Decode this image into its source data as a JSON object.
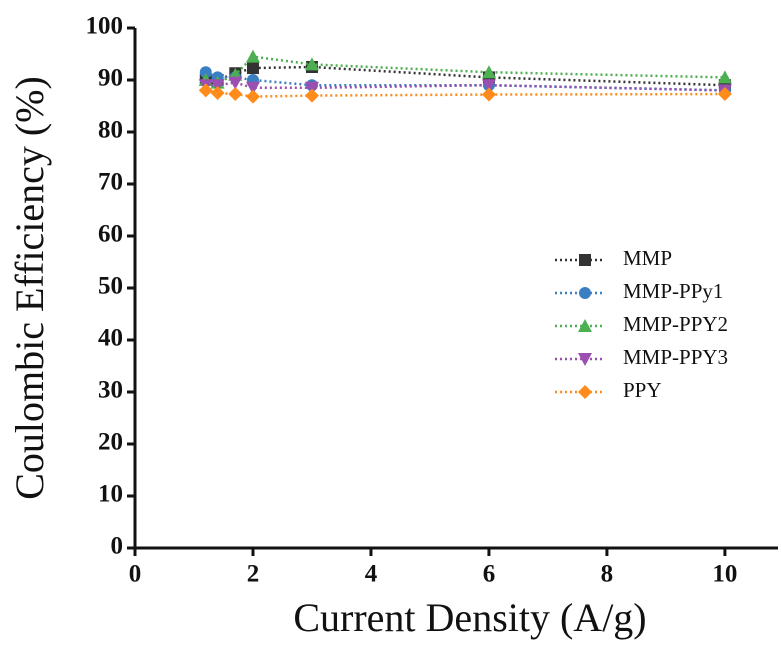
{
  "chart_data": {
    "type": "line",
    "x_label": "Current Density (A/g)",
    "y_label": "Coulombic Efficiency (%)",
    "x": [
      1.2,
      1.4,
      1.7,
      2,
      3,
      6,
      10
    ],
    "series": [
      {
        "name": "MMP",
        "color": "#333333",
        "marker": "square",
        "values": [
          90,
          90,
          91.3,
          92.3,
          92.5,
          90.5,
          89
        ]
      },
      {
        "name": "MMP-PPy1",
        "color": "#3a7fc1",
        "marker": "circle",
        "values": [
          91.5,
          90.5,
          90.5,
          90,
          89,
          89,
          88
        ]
      },
      {
        "name": "MMP-PPY2",
        "color": "#4caf50",
        "marker": "triangle",
        "values": [
          90,
          89.5,
          91,
          94.5,
          93,
          91.5,
          90.5
        ]
      },
      {
        "name": "MMP-PPY3",
        "color": "#9b4fb0",
        "marker": "triangle-down",
        "values": [
          89,
          89,
          89.5,
          88.5,
          88.5,
          89,
          88
        ]
      },
      {
        "name": "PPY",
        "color": "#ff8c1a",
        "marker": "diamond",
        "values": [
          88,
          87.5,
          87.3,
          86.8,
          87,
          87.2,
          87.3
        ]
      }
    ],
    "xlim": [
      0,
      10.9
    ],
    "xticks": [
      0,
      2,
      4,
      6,
      8,
      10
    ],
    "ylim": [
      0,
      100
    ],
    "yticks": [
      0,
      10,
      20,
      30,
      40,
      50,
      60,
      70,
      80,
      90,
      100
    ],
    "grid": false,
    "legend": "right",
    "line_style": "dotted"
  }
}
